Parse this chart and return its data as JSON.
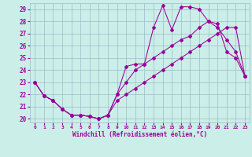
{
  "xlabel": "Windchill (Refroidissement éolien,°C)",
  "bg_color": "#cceee8",
  "grid_color": "#99bbcc",
  "line_color": "#990099",
  "xlim": [
    -0.5,
    23.5
  ],
  "ylim": [
    19.7,
    29.5
  ],
  "yticks": [
    20,
    21,
    22,
    23,
    24,
    25,
    26,
    27,
    28,
    29
  ],
  "xticks": [
    0,
    1,
    2,
    3,
    4,
    5,
    6,
    7,
    8,
    9,
    10,
    11,
    12,
    13,
    14,
    15,
    16,
    17,
    18,
    19,
    20,
    21,
    22,
    23
  ],
  "line1_x": [
    0,
    1,
    2,
    3,
    4,
    5,
    6,
    7,
    8,
    9,
    10,
    11,
    12,
    13,
    14,
    15,
    16,
    17,
    18,
    19,
    20,
    21,
    22,
    23
  ],
  "line1_y": [
    23.0,
    21.9,
    21.5,
    20.8,
    20.3,
    20.3,
    20.2,
    20.0,
    20.3,
    21.5,
    22.0,
    22.5,
    23.0,
    23.5,
    24.0,
    24.5,
    25.0,
    25.5,
    26.0,
    26.5,
    27.0,
    27.5,
    27.5,
    23.5
  ],
  "line2_x": [
    0,
    1,
    2,
    3,
    4,
    5,
    6,
    7,
    8,
    9,
    10,
    11,
    12,
    13,
    14,
    15,
    16,
    17,
    18,
    19,
    20,
    21,
    22,
    23
  ],
  "line2_y": [
    23.0,
    21.9,
    21.5,
    20.8,
    20.3,
    20.3,
    20.2,
    20.0,
    20.3,
    22.0,
    24.3,
    24.5,
    24.5,
    27.5,
    29.3,
    27.3,
    29.2,
    29.2,
    29.0,
    28.0,
    27.5,
    26.5,
    25.5,
    23.5
  ],
  "line3_x": [
    0,
    1,
    2,
    3,
    4,
    5,
    6,
    7,
    8,
    9,
    10,
    11,
    12,
    13,
    14,
    15,
    16,
    17,
    18,
    19,
    20,
    21,
    22,
    23
  ],
  "line3_y": [
    23.0,
    21.9,
    21.5,
    20.8,
    20.3,
    20.3,
    20.2,
    20.0,
    20.3,
    22.0,
    23.0,
    24.0,
    24.5,
    25.0,
    25.5,
    26.0,
    26.5,
    26.8,
    27.5,
    28.0,
    27.8,
    25.5,
    25.0,
    23.5
  ]
}
